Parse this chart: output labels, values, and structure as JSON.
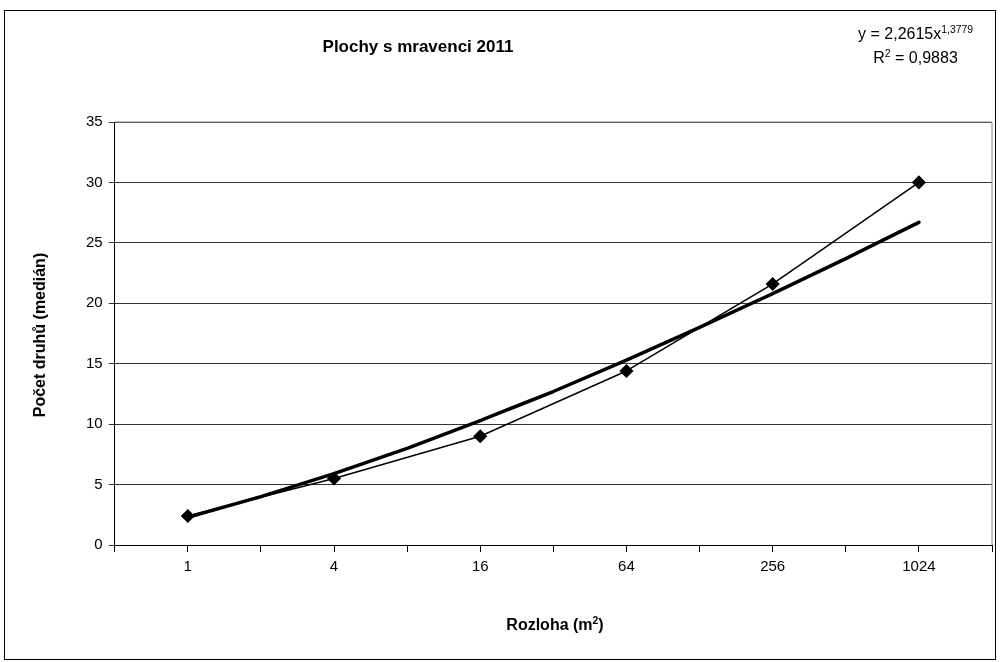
{
  "chart_data": {
    "type": "line",
    "title": "Plochy s mravenci 2011",
    "xlabel": "Rozloha (m$^{2}$)",
    "ylabel": "Počet druhů (medián)",
    "annotations": [
      "y = 2,2615x$^{1,3779}$",
      "R$^{2}$ = 0,9883"
    ],
    "log": "x",
    "xlim": [
      0.5,
      2048
    ],
    "xticks": [
      {
        "value": 0.5,
        "label": null
      },
      1,
      {
        "value": 2,
        "label": null
      },
      4,
      {
        "value": 8,
        "label": null
      },
      16,
      {
        "value": 32,
        "label": null
      },
      64,
      {
        "value": 128,
        "label": null
      },
      256,
      {
        "value": 512,
        "label": null
      },
      1024,
      {
        "value": 2048,
        "label": null
      }
    ],
    "ylim": [
      0,
      35
    ],
    "yticks": [
      0,
      5,
      10,
      15,
      20,
      25,
      30,
      35
    ],
    "grid": "y",
    "legend": false,
    "series": [
      {
        "color": "#000000",
        "marker": "diamond",
        "x": [
          1,
          4,
          16,
          64,
          256,
          1024
        ],
        "values": [
          2.4,
          5.5,
          9,
          14.4,
          21.6,
          30
        ]
      },
      {
        "color": "#000000",
        "marker": "none",
        "x": [
          1,
          2,
          4,
          8,
          16,
          32,
          64,
          128,
          256,
          512,
          1024
        ],
        "values": [
          2.3,
          4,
          5.9,
          8,
          10.3,
          12.7,
          15.3,
          18,
          20.8,
          23.7,
          26.7
        ]
      }
    ]
  }
}
